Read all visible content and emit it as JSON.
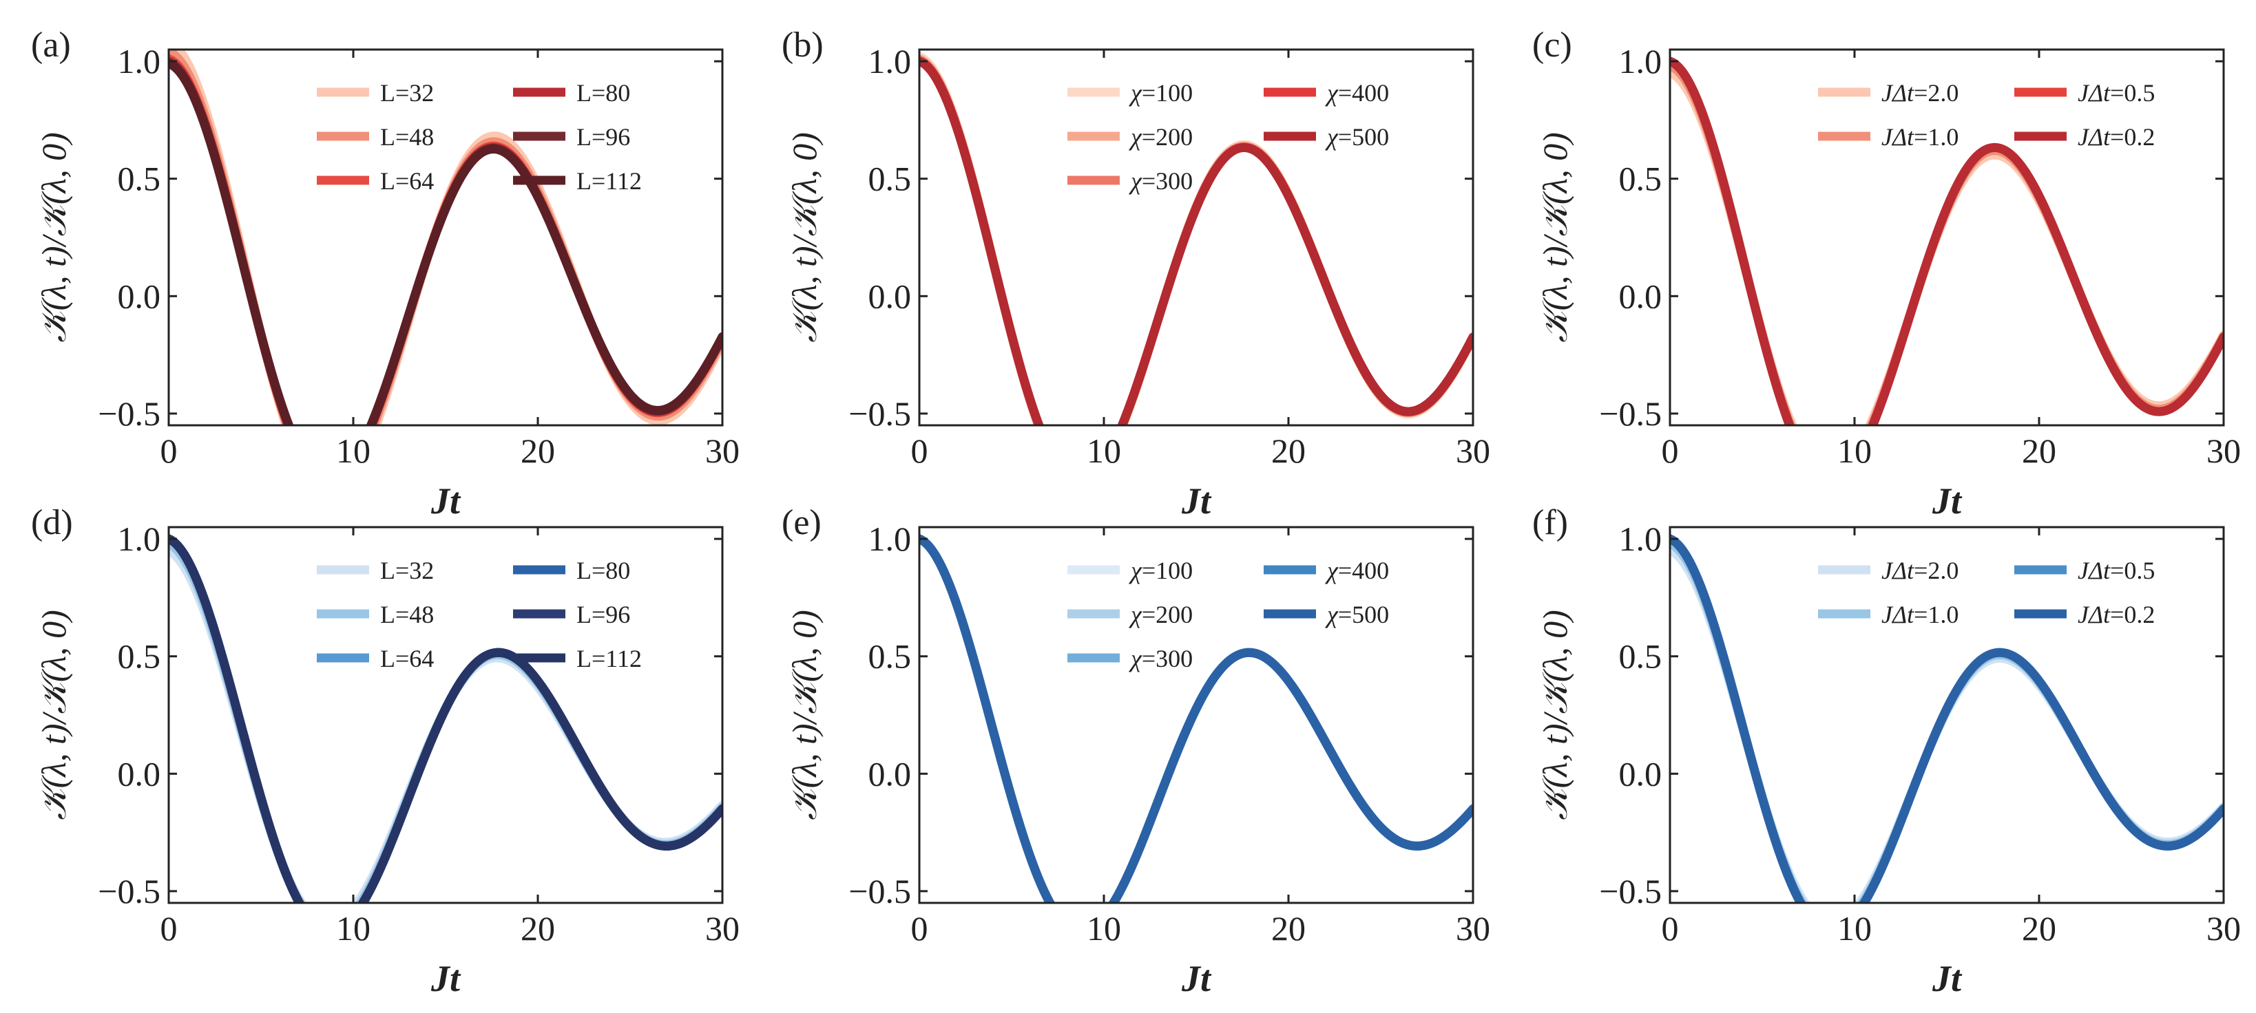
{
  "figure": {
    "xlabel_main": "Jt",
    "ylabel_main": "𝒦(λ, t)/𝒦(λ, 0)"
  },
  "chart_data": [
    {
      "panel": "(a)",
      "type": "line",
      "xlabel": "Jt",
      "ylabel": "𝒦(λ, t)/𝒦(λ, 0)",
      "xlim": [
        0,
        30
      ],
      "ylim": [
        -0.55,
        1.05
      ],
      "xticks": [
        0,
        10,
        20,
        30
      ],
      "yticks": [
        -0.5,
        0.0,
        0.5,
        1.0
      ],
      "xtick_labels": [
        "0",
        "10",
        "20",
        "30"
      ],
      "ytick_labels": [
        "−0.5",
        "0.0",
        "0.5",
        "1.0"
      ],
      "legend_cols": 2,
      "legend_rows": 3,
      "legend_position": "top-right",
      "curve": {
        "T": 17.8,
        "tau": 38,
        "tail": 0.005
      },
      "series": [
        {
          "name": "L=32",
          "label_prefix": "",
          "label_value": "L=32",
          "color": "#fcc5ac",
          "amp": 1.08,
          "phase": -0.02,
          "alpha": 0.95
        },
        {
          "name": "L=48",
          "label_prefix": "",
          "label_value": "L=48",
          "color": "#f08b73",
          "amp": 1.04,
          "phase": -0.01,
          "alpha": 0.95
        },
        {
          "name": "L=64",
          "label_prefix": "",
          "label_value": "L=64",
          "color": "#e5433a",
          "amp": 1.01,
          "phase": 0.0,
          "alpha": 0.95
        },
        {
          "name": "L=80",
          "label_prefix": "",
          "label_value": "L=80",
          "color": "#b92c33",
          "amp": 1.0,
          "phase": 0.0,
          "alpha": 1.0
        },
        {
          "name": "L=96",
          "label_prefix": "",
          "label_value": "L=96",
          "color": "#722a30",
          "amp": 0.995,
          "phase": 0.0,
          "alpha": 1.0
        },
        {
          "name": "L=112",
          "label_prefix": "",
          "label_value": "L=112",
          "color": "#5c1f26",
          "amp": 0.99,
          "phase": 0.0,
          "alpha": 1.0
        }
      ]
    },
    {
      "panel": "(b)",
      "type": "line",
      "xlabel": "Jt",
      "ylabel": "𝒦(λ, t)/𝒦(λ, 0)",
      "xlim": [
        0,
        30
      ],
      "ylim": [
        -0.55,
        1.05
      ],
      "xticks": [
        0,
        10,
        20,
        30
      ],
      "yticks": [
        -0.5,
        0.0,
        0.5,
        1.0
      ],
      "xtick_labels": [
        "0",
        "10",
        "20",
        "30"
      ],
      "ytick_labels": [
        "−0.5",
        "0.0",
        "0.5",
        "1.0"
      ],
      "legend_cols": 2,
      "legend_rows": 3,
      "legend_position": "top-right",
      "curve": {
        "T": 17.8,
        "tau": 38,
        "tail": 0.005
      },
      "series": [
        {
          "name": "χ=100",
          "label_prefix": "χ",
          "label_value": "=100",
          "color": "#fcd6c3",
          "amp": 1.02,
          "phase": 0.0,
          "alpha": 0.95
        },
        {
          "name": "χ=200",
          "label_prefix": "χ",
          "label_value": "=200",
          "color": "#f6a48a",
          "amp": 1.01,
          "phase": 0.0,
          "alpha": 0.95
        },
        {
          "name": "χ=300",
          "label_prefix": "χ",
          "label_value": "=300",
          "color": "#ee7160",
          "amp": 1.005,
          "phase": 0.0,
          "alpha": 0.95
        },
        {
          "name": "χ=400",
          "label_prefix": "χ",
          "label_value": "=400",
          "color": "#e03a3a",
          "amp": 1.0,
          "phase": 0.0,
          "alpha": 1.0
        },
        {
          "name": "χ=500",
          "label_prefix": "χ",
          "label_value": "=500",
          "color": "#b32a31",
          "amp": 1.0,
          "phase": 0.0,
          "alpha": 1.0
        }
      ]
    },
    {
      "panel": "(c)",
      "type": "line",
      "xlabel": "Jt",
      "ylabel": "𝒦(λ, t)/𝒦(λ, 0)",
      "xlim": [
        0,
        30
      ],
      "ylim": [
        -0.55,
        1.05
      ],
      "xticks": [
        0,
        10,
        20,
        30
      ],
      "yticks": [
        -0.5,
        0.0,
        0.5,
        1.0
      ],
      "xtick_labels": [
        "0",
        "10",
        "20",
        "30"
      ],
      "ytick_labels": [
        "−0.5",
        "0.0",
        "0.5",
        "1.0"
      ],
      "legend_cols": 2,
      "legend_rows": 2,
      "legend_position": "top-right",
      "curve": {
        "T": 17.8,
        "tau": 38,
        "tail": 0.005
      },
      "series": [
        {
          "name": "JΔt=2.0",
          "label_prefix": "JΔt",
          "label_value": "=2.0",
          "color": "#fcc5ac",
          "amp": 0.95,
          "phase": 0.0,
          "alpha": 0.95
        },
        {
          "name": "JΔt=1.0",
          "label_prefix": "JΔt",
          "label_value": "=1.0",
          "color": "#f08b73",
          "amp": 0.98,
          "phase": 0.0,
          "alpha": 0.95
        },
        {
          "name": "JΔt=0.5",
          "label_prefix": "JΔt",
          "label_value": "=0.5",
          "color": "#e5433a",
          "amp": 1.0,
          "phase": 0.0,
          "alpha": 1.0
        },
        {
          "name": "JΔt=0.2",
          "label_prefix": "JΔt",
          "label_value": "=0.2",
          "color": "#b92c33",
          "amp": 1.0,
          "phase": 0.0,
          "alpha": 1.0
        }
      ]
    },
    {
      "panel": "(d)",
      "type": "line",
      "xlabel": "Jt",
      "ylabel": "𝒦(λ, t)/𝒦(λ, 0)",
      "xlim": [
        0,
        30
      ],
      "ylim": [
        -0.55,
        1.05
      ],
      "xticks": [
        0,
        10,
        20,
        30
      ],
      "yticks": [
        -0.5,
        0.0,
        0.5,
        1.0
      ],
      "xtick_labels": [
        "0",
        "10",
        "20",
        "30"
      ],
      "ytick_labels": [
        "−0.5",
        "0.0",
        "0.5",
        "1.0"
      ],
      "legend_cols": 2,
      "legend_rows": 3,
      "legend_position": "top-right",
      "curve": {
        "T": 18.2,
        "tau": 25,
        "tail": 0.03
      },
      "series": [
        {
          "name": "L=32",
          "label_prefix": "",
          "label_value": "L=32",
          "color": "#cde0f2",
          "amp": 0.95,
          "phase": 0.03,
          "alpha": 0.95
        },
        {
          "name": "L=48",
          "label_prefix": "",
          "label_value": "L=48",
          "color": "#93c3e3",
          "amp": 0.98,
          "phase": 0.015,
          "alpha": 0.95
        },
        {
          "name": "L=64",
          "label_prefix": "",
          "label_value": "L=64",
          "color": "#4f95d0",
          "amp": 1.0,
          "phase": 0.0,
          "alpha": 0.95
        },
        {
          "name": "L=80",
          "label_prefix": "",
          "label_value": "L=80",
          "color": "#2d63a8",
          "amp": 1.0,
          "phase": 0.0,
          "alpha": 1.0
        },
        {
          "name": "L=96",
          "label_prefix": "",
          "label_value": "L=96",
          "color": "#2c3d73",
          "amp": 1.0,
          "phase": 0.0,
          "alpha": 1.0
        },
        {
          "name": "L=112",
          "label_prefix": "",
          "label_value": "L=112",
          "color": "#273566",
          "amp": 1.0,
          "phase": 0.0,
          "alpha": 1.0
        }
      ]
    },
    {
      "panel": "(e)",
      "type": "line",
      "xlabel": "Jt",
      "ylabel": "𝒦(λ, t)/𝒦(λ, 0)",
      "xlim": [
        0,
        30
      ],
      "ylim": [
        -0.55,
        1.05
      ],
      "xticks": [
        0,
        10,
        20,
        30
      ],
      "yticks": [
        -0.5,
        0.0,
        0.5,
        1.0
      ],
      "xtick_labels": [
        "0",
        "10",
        "20",
        "30"
      ],
      "ytick_labels": [
        "−0.5",
        "0.0",
        "0.5",
        "1.0"
      ],
      "legend_cols": 2,
      "legend_rows": 3,
      "legend_position": "top-right",
      "curve": {
        "T": 18.2,
        "tau": 25,
        "tail": 0.03
      },
      "series": [
        {
          "name": "χ=100",
          "label_prefix": "χ",
          "label_value": "=100",
          "color": "#dbe9f6",
          "amp": 1.0,
          "phase": 0.0,
          "alpha": 0.95
        },
        {
          "name": "χ=200",
          "label_prefix": "χ",
          "label_value": "=200",
          "color": "#a9cde8",
          "amp": 1.0,
          "phase": 0.0,
          "alpha": 0.95
        },
        {
          "name": "χ=300",
          "label_prefix": "χ",
          "label_value": "=300",
          "color": "#6aaad8",
          "amp": 1.0,
          "phase": 0.0,
          "alpha": 0.95
        },
        {
          "name": "χ=400",
          "label_prefix": "χ",
          "label_value": "=400",
          "color": "#3f86c3",
          "amp": 1.0,
          "phase": 0.0,
          "alpha": 1.0
        },
        {
          "name": "χ=500",
          "label_prefix": "χ",
          "label_value": "=500",
          "color": "#2b62a6",
          "amp": 1.0,
          "phase": 0.0,
          "alpha": 1.0
        }
      ]
    },
    {
      "panel": "(f)",
      "type": "line",
      "xlabel": "Jt",
      "ylabel": "𝒦(λ, t)/𝒦(λ, 0)",
      "xlim": [
        0,
        30
      ],
      "ylim": [
        -0.55,
        1.05
      ],
      "xticks": [
        0,
        10,
        20,
        30
      ],
      "yticks": [
        -0.5,
        0.0,
        0.5,
        1.0
      ],
      "xtick_labels": [
        "0",
        "10",
        "20",
        "30"
      ],
      "ytick_labels": [
        "−0.5",
        "0.0",
        "0.5",
        "1.0"
      ],
      "legend_cols": 2,
      "legend_rows": 2,
      "legend_position": "top-right",
      "curve": {
        "T": 18.2,
        "tau": 25,
        "tail": 0.03
      },
      "series": [
        {
          "name": "JΔt=2.0",
          "label_prefix": "JΔt",
          "label_value": "=2.0",
          "color": "#cde0f2",
          "amp": 0.95,
          "phase": 0.0,
          "alpha": 0.95
        },
        {
          "name": "JΔt=1.0",
          "label_prefix": "JΔt",
          "label_value": "=1.0",
          "color": "#93c3e3",
          "amp": 0.98,
          "phase": 0.0,
          "alpha": 0.95
        },
        {
          "name": "JΔt=0.5",
          "label_prefix": "JΔt",
          "label_value": "=0.5",
          "color": "#4a8fca",
          "amp": 1.0,
          "phase": 0.0,
          "alpha": 1.0
        },
        {
          "name": "JΔt=0.2",
          "label_prefix": "JΔt",
          "label_value": "=0.2",
          "color": "#2b62a6",
          "amp": 1.0,
          "phase": 0.0,
          "alpha": 1.0
        }
      ]
    }
  ]
}
